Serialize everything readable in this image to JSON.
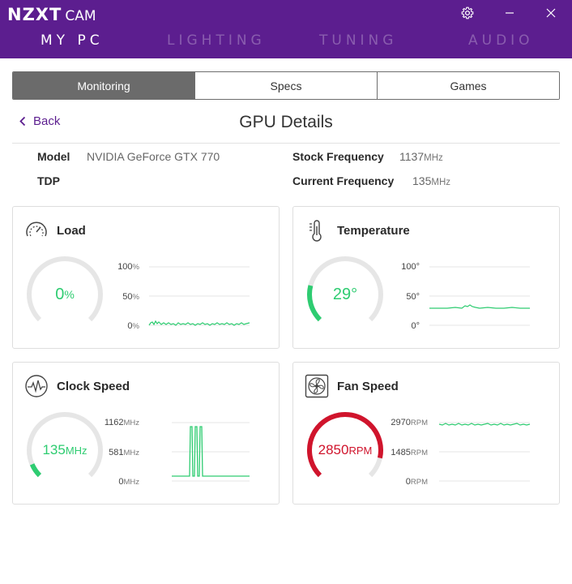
{
  "app": {
    "logo_main": "NZXT",
    "logo_sub": "CAM"
  },
  "nav": [
    {
      "label": "MY PC",
      "active": true
    },
    {
      "label": "LIGHTING",
      "active": false
    },
    {
      "label": "TUNING",
      "active": false
    },
    {
      "label": "AUDIO",
      "active": false
    }
  ],
  "window_controls": {
    "settings": "gear-icon",
    "minimize": "minimize-icon",
    "close": "close-icon"
  },
  "tabs": [
    {
      "label": "Monitoring",
      "active": true
    },
    {
      "label": "Specs",
      "active": false
    },
    {
      "label": "Games",
      "active": false
    }
  ],
  "back_label": "Back",
  "page_title": "GPU Details",
  "info": {
    "model_label": "Model",
    "model_value": "NVIDIA GeForce GTX 770",
    "tdp_label": "TDP",
    "stock_freq_label": "Stock Frequency",
    "stock_freq_value": "1137",
    "stock_freq_unit": "MHz",
    "current_freq_label": "Current Frequency",
    "current_freq_value": "135",
    "current_freq_unit": "MHz"
  },
  "colors": {
    "brand": "#5c1e8f",
    "green": "#2ecc71",
    "red": "#d0142c",
    "track": "#e6e6e6"
  },
  "cards": {
    "load": {
      "title": "Load",
      "icon": "speedometer-icon",
      "value": "0",
      "unit": "%",
      "gauge_fraction": 0.0,
      "color": "#2ecc71",
      "axis": [
        {
          "v": "100",
          "u": "%"
        },
        {
          "v": "50",
          "u": "%"
        },
        {
          "v": "0",
          "u": "%"
        }
      ],
      "y_range": [
        0,
        100
      ]
    },
    "temperature": {
      "title": "Temperature",
      "icon": "thermometer-icon",
      "value": "29",
      "unit": "°",
      "gauge_fraction": 0.22,
      "color": "#2ecc71",
      "axis": [
        {
          "v": "100",
          "u": "°"
        },
        {
          "v": "50",
          "u": "°"
        },
        {
          "v": "0",
          "u": "°"
        }
      ],
      "y_range": [
        0,
        100
      ]
    },
    "clock": {
      "title": "Clock Speed",
      "icon": "pulse-icon",
      "value": "135",
      "unit": "MHz",
      "gauge_fraction": 0.08,
      "color": "#2ecc71",
      "axis": [
        {
          "v": "1162",
          "u": "MHz"
        },
        {
          "v": "581",
          "u": "MHz"
        },
        {
          "v": "0",
          "u": "MHz"
        }
      ],
      "y_range": [
        0,
        1162
      ]
    },
    "fan": {
      "title": "Fan Speed",
      "icon": "fan-icon",
      "value": "2850",
      "unit": "RPM",
      "gauge_fraction": 0.88,
      "color": "#d0142c",
      "axis": [
        {
          "v": "2970",
          "u": "RPM"
        },
        {
          "v": "1485",
          "u": "RPM"
        },
        {
          "v": "0",
          "u": "RPM"
        }
      ],
      "y_range": [
        0,
        2970
      ]
    }
  }
}
